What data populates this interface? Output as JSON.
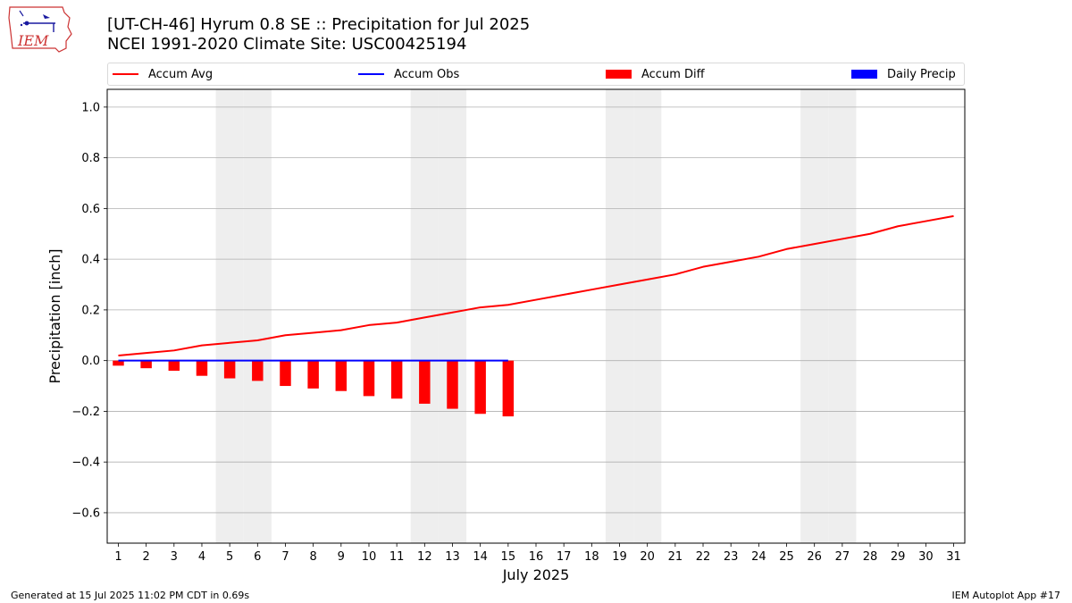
{
  "header": {
    "title_line1": "[UT-CH-46] Hyrum 0.8 SE :: Precipitation for Jul 2025",
    "title_line2": "NCEI 1991-2020 Climate Site: USC00425194",
    "logo_text": "IEM"
  },
  "legend": {
    "items": [
      {
        "label": "Accum Avg",
        "color": "#ff0000",
        "kind": "line"
      },
      {
        "label": "Accum Obs",
        "color": "#0000ff",
        "kind": "line"
      },
      {
        "label": "Accum Diff",
        "color": "#ff0000",
        "kind": "bar"
      },
      {
        "label": "Daily Precip",
        "color": "#0000ff",
        "kind": "bar"
      }
    ]
  },
  "footer": {
    "left": "Generated at 15 Jul 2025 11:02 PM CDT in 0.69s",
    "right": "IEM Autoplot App #17"
  },
  "chart_data": {
    "type": "bar",
    "xlabel": "July 2025",
    "ylabel": "Precipitation [inch]",
    "ylim": [
      -0.72,
      1.07
    ],
    "yticks": [
      -0.6,
      -0.4,
      -0.2,
      0.0,
      0.2,
      0.4,
      0.6,
      0.8,
      1.0
    ],
    "ytick_labels": [
      "−0.6",
      "−0.4",
      "−0.2",
      "0.0",
      "0.2",
      "0.4",
      "0.6",
      "0.8",
      "1.0"
    ],
    "days": [
      1,
      2,
      3,
      4,
      5,
      6,
      7,
      8,
      9,
      10,
      11,
      12,
      13,
      14,
      15,
      16,
      17,
      18,
      19,
      20,
      21,
      22,
      23,
      24,
      25,
      26,
      27,
      28,
      29,
      30,
      31
    ],
    "weekend_days": [
      5,
      6,
      12,
      13,
      19,
      20,
      26,
      27
    ],
    "grid": "horizontal",
    "series": [
      {
        "name": "Accum Avg",
        "kind": "line",
        "color": "#ff0000",
        "values": [
          0.02,
          0.03,
          0.04,
          0.06,
          0.07,
          0.08,
          0.1,
          0.11,
          0.12,
          0.14,
          0.15,
          0.17,
          0.19,
          0.21,
          0.22,
          0.24,
          0.26,
          0.28,
          0.3,
          0.32,
          0.34,
          0.37,
          0.39,
          0.41,
          0.44,
          0.46,
          0.48,
          0.5,
          0.53,
          0.55,
          0.57
        ]
      },
      {
        "name": "Accum Obs",
        "kind": "line",
        "color": "#0000ff",
        "values": [
          0,
          0,
          0,
          0,
          0,
          0,
          0,
          0,
          0,
          0,
          0,
          0,
          0,
          0,
          0
        ]
      },
      {
        "name": "Accum Diff",
        "kind": "bar",
        "color": "#ff0000",
        "values": [
          -0.02,
          -0.03,
          -0.04,
          -0.06,
          -0.07,
          -0.08,
          -0.1,
          -0.11,
          -0.12,
          -0.14,
          -0.15,
          -0.17,
          -0.19,
          -0.21,
          -0.22
        ]
      },
      {
        "name": "Daily Precip",
        "kind": "bar",
        "color": "#0000ff",
        "values": [
          0,
          0,
          0,
          0,
          0,
          0,
          0,
          0,
          0,
          0,
          0,
          0,
          0,
          0,
          0
        ]
      }
    ]
  }
}
